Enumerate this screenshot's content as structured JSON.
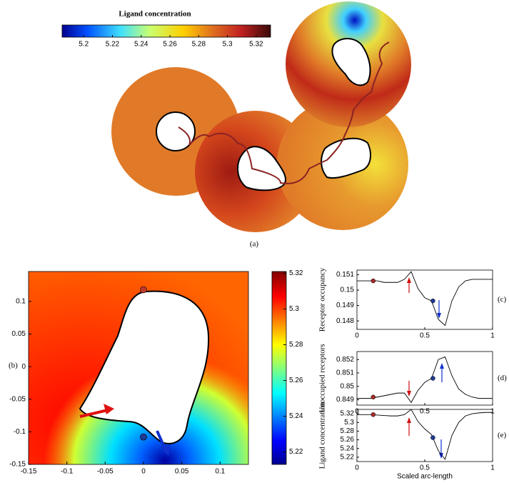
{
  "chart_data": [
    {
      "type": "contour",
      "panel_label": "(a)",
      "colorbar_title": "Ligand concentration",
      "colorbar_lim": [
        5.185,
        5.33
      ],
      "colorbar_ticks": [
        5.2,
        5.22,
        5.24,
        5.26,
        5.28,
        5.3,
        5.32
      ]
    },
    {
      "type": "heatmap",
      "panel_label": "(b)",
      "xlim": [
        -0.15,
        0.137
      ],
      "xticks": [
        -0.15,
        -0.1,
        -0.05,
        0,
        0.05,
        0.1
      ],
      "ylim": [
        -0.15,
        0.146
      ],
      "yticks": [
        -0.15,
        -0.1,
        -0.05,
        0,
        0.05,
        0.1
      ],
      "colorbar_lim": [
        5.213,
        5.321
      ],
      "colorbar_ticks": [
        5.22,
        5.24,
        5.26,
        5.28,
        5.3,
        5.32
      ],
      "points": [
        {
          "x": 0,
          "y": 0.118,
          "color": "#c0392b"
        },
        {
          "x": 0,
          "y": -0.108,
          "color": "#1f3a93"
        }
      ]
    },
    {
      "type": "line",
      "panel_label": "(c)",
      "ylabel": "Receptor occupancy",
      "color": "#000000",
      "x": [
        0,
        0.05,
        0.1,
        0.15,
        0.2,
        0.25,
        0.3,
        0.35,
        0.4,
        0.45,
        0.5,
        0.55,
        0.6,
        0.65,
        0.7,
        0.75,
        0.8,
        0.85,
        0.9,
        0.95,
        1
      ],
      "values": [
        0.1506,
        0.1506,
        0.1506,
        0.1506,
        0.1505,
        0.1505,
        0.1505,
        0.1507,
        0.1512,
        0.1501,
        0.1495,
        0.1493,
        0.1481,
        0.1477,
        0.1493,
        0.1502,
        0.1506,
        0.1507,
        0.1507,
        0.1507,
        0.1507
      ],
      "xlim": [
        0,
        1
      ],
      "xticks": [
        0,
        0.5,
        1
      ],
      "ylim": [
        0.14745,
        0.1513
      ],
      "yticks": [
        0.148,
        0.149,
        0.15,
        0.151
      ],
      "points": [
        {
          "x": 0.12,
          "y": 0.1506,
          "color": "#a52a2a"
        },
        {
          "x": 0.56,
          "y": 0.1493,
          "color": "#1f3a93"
        }
      ]
    },
    {
      "type": "line",
      "panel_label": "(d)",
      "ylabel": "Unoccupied receptors",
      "color": "#000000",
      "x": [
        0,
        0.05,
        0.1,
        0.15,
        0.2,
        0.25,
        0.3,
        0.35,
        0.4,
        0.45,
        0.5,
        0.55,
        0.6,
        0.65,
        0.7,
        0.75,
        0.8,
        0.85,
        0.9,
        0.95,
        1
      ],
      "values": [
        0.8491,
        0.8491,
        0.8491,
        0.8492,
        0.8493,
        0.8494,
        0.8495,
        0.8495,
        0.8488,
        0.8497,
        0.8503,
        0.8506,
        0.852,
        0.8522,
        0.8508,
        0.8498,
        0.8494,
        0.8492,
        0.8491,
        0.8491,
        0.8491
      ],
      "xlim": [
        0,
        1
      ],
      "xticks": [
        0,
        0.5,
        1
      ],
      "ylim": [
        0.8486,
        0.8526
      ],
      "yticks": [
        0.849,
        0.85,
        0.851,
        0.852
      ],
      "points": [
        {
          "x": 0.12,
          "y": 0.8492,
          "color": "#a52a2a"
        },
        {
          "x": 0.56,
          "y": 0.8506,
          "color": "#1f3a93"
        }
      ]
    },
    {
      "type": "line",
      "panel_label": "(e)",
      "ylabel": "Ligand concentration",
      "xlabel": "Scaled arc-length",
      "color": "#000000",
      "x": [
        0,
        0.05,
        0.1,
        0.15,
        0.2,
        0.25,
        0.3,
        0.35,
        0.4,
        0.45,
        0.5,
        0.55,
        0.6,
        0.65,
        0.7,
        0.75,
        0.8,
        0.85,
        0.9,
        0.95,
        1
      ],
      "values": [
        5.318,
        5.318,
        5.318,
        5.317,
        5.316,
        5.315,
        5.315,
        5.318,
        5.33,
        5.302,
        5.285,
        5.272,
        5.235,
        5.215,
        5.27,
        5.3,
        5.315,
        5.32,
        5.322,
        5.323,
        5.323
      ],
      "xlim": [
        0,
        1
      ],
      "xticks": [
        0,
        0.5,
        1
      ],
      "ylim": [
        5.21,
        5.33
      ],
      "yticks": [
        5.22,
        5.24,
        5.26,
        5.28,
        5.3,
        5.32
      ],
      "points": [
        {
          "x": 0.12,
          "y": 5.318,
          "color": "#a52a2a"
        },
        {
          "x": 0.56,
          "y": 5.265,
          "color": "#1f3a93"
        }
      ]
    }
  ]
}
